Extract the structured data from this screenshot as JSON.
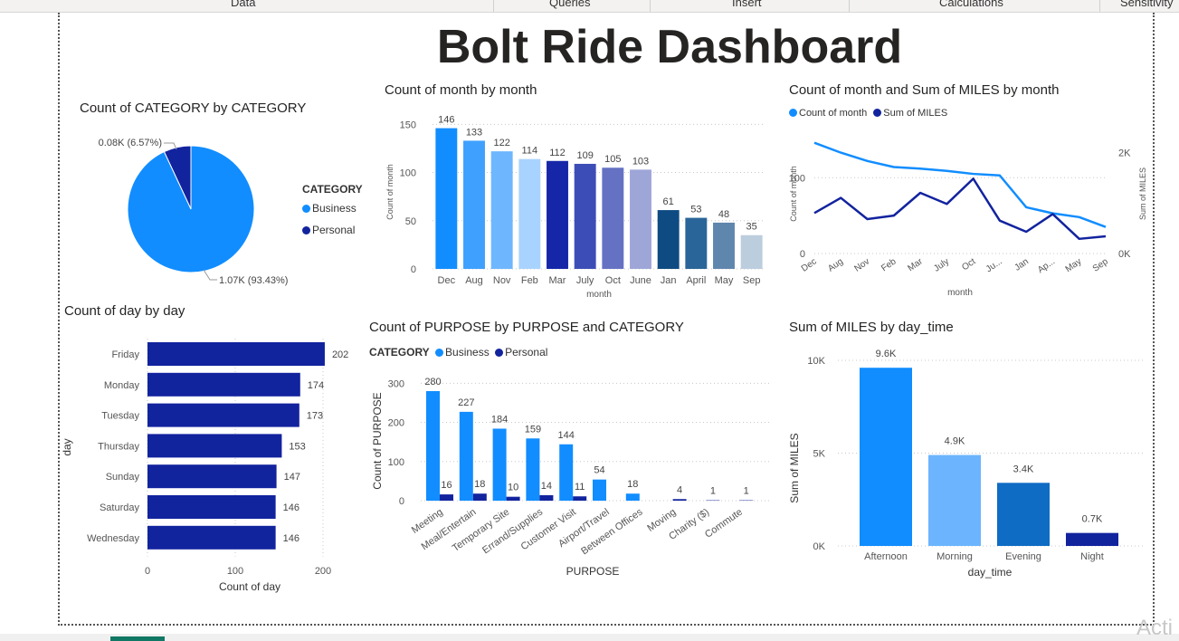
{
  "ribbon": {
    "tabs": [
      "Data",
      "Queries",
      "Insert",
      "Calculations",
      "Sensitivity"
    ]
  },
  "dashboard_title": "Bolt Ride Dashboard",
  "colors": {
    "business": "#118dff",
    "personal": "#12239e",
    "line_count": "#118dff",
    "line_miles": "#12239e"
  },
  "watermark": "Acti",
  "chart_data": [
    {
      "id": "category_pie",
      "type": "pie",
      "title": "Count of CATEGORY by CATEGORY",
      "legend_title": "CATEGORY",
      "categories": [
        "Business",
        "Personal"
      ],
      "values": [
        1070,
        80
      ],
      "data_labels": [
        "1.07K (93.43%)",
        "0.08K (6.57%)"
      ],
      "percents": [
        93.43,
        6.57
      ],
      "colors": [
        "#118dff",
        "#12239e"
      ],
      "legend_position": "right"
    },
    {
      "id": "month_bar",
      "type": "bar",
      "title": "Count of month by month",
      "xlabel": "month",
      "ylabel": "Count of month",
      "categories": [
        "Dec",
        "Aug",
        "Nov",
        "Feb",
        "Mar",
        "July",
        "Oct",
        "June",
        "Jan",
        "April",
        "May",
        "Sep"
      ],
      "values": [
        146,
        133,
        122,
        114,
        112,
        109,
        105,
        103,
        61,
        53,
        48,
        35
      ],
      "colors": [
        "#118dff",
        "#3fa0fe",
        "#6eb7fe",
        "#a8d3fe",
        "#1527a8",
        "#3d4db7",
        "#6572c3",
        "#9ea6d8",
        "#0e4b82",
        "#2a6599",
        "#5f86ad",
        "#bccdde"
      ],
      "yticks": [
        0,
        50,
        100,
        150
      ],
      "ylim": [
        0,
        155
      ]
    },
    {
      "id": "month_line",
      "type": "line",
      "title": "Count of month and Sum of MILES by month",
      "xlabel": "month",
      "ylabel": "Count of month",
      "y2label": "Sum of MILES",
      "categories": [
        "Dec",
        "Aug",
        "Nov",
        "Feb",
        "Mar",
        "July",
        "Oct",
        "Ju...",
        "Jan",
        "Ap...",
        "May",
        "Sep"
      ],
      "series": [
        {
          "name": "Count of month",
          "axis": "left",
          "values": [
            146,
            133,
            122,
            114,
            112,
            109,
            105,
            103,
            61,
            53,
            48,
            35
          ]
        },
        {
          "name": "Sum of MILES",
          "axis": "right",
          "values": [
            800,
            1100,
            680,
            750,
            1200,
            980,
            1480,
            650,
            430,
            780,
            290,
            340
          ]
        }
      ],
      "yticks": [
        0,
        100
      ],
      "y2ticks": [
        "0K",
        "2K"
      ],
      "ylim": [
        0,
        160
      ],
      "y2lim": [
        0,
        2400
      ],
      "legend_position": "top-left"
    },
    {
      "id": "day_bar",
      "type": "bar",
      "orientation": "horizontal",
      "title": "Count of day by day",
      "xlabel": "Count of day",
      "ylabel": "day",
      "categories": [
        "Friday",
        "Monday",
        "Tuesday",
        "Thursday",
        "Sunday",
        "Saturday",
        "Wednesday"
      ],
      "values": [
        202,
        174,
        173,
        153,
        147,
        146,
        146
      ],
      "color": "#12239e",
      "xticks": [
        0,
        100,
        200
      ],
      "xlim": [
        0,
        210
      ]
    },
    {
      "id": "purpose_bar",
      "type": "bar",
      "title": "Count of PURPOSE by PURPOSE and CATEGORY",
      "xlabel": "PURPOSE",
      "ylabel": "Count of PURPOSE",
      "legend_title": "CATEGORY",
      "categories": [
        "Meeting",
        "Meal/Entertain",
        "Temporary Site",
        "Errand/Supplies",
        "Customer Visit",
        "Airport/Travel",
        "Between Offices",
        "Moving",
        "Charity ($)",
        "Commute"
      ],
      "series": [
        {
          "name": "Business",
          "values": [
            280,
            227,
            184,
            159,
            144,
            54,
            18,
            null,
            null,
            null
          ]
        },
        {
          "name": "Personal",
          "values": [
            16,
            18,
            10,
            14,
            11,
            null,
            null,
            4,
            1,
            1
          ]
        }
      ],
      "yticks": [
        0,
        100,
        200,
        300
      ],
      "ylim": [
        0,
        310
      ],
      "legend_position": "top-left"
    },
    {
      "id": "daytime_bar",
      "type": "bar",
      "title": "Sum of MILES by day_time",
      "xlabel": "day_time",
      "ylabel": "Sum of MILES",
      "categories": [
        "Afternoon",
        "Morning",
        "Evening",
        "Night"
      ],
      "values": [
        9600,
        4900,
        3400,
        700
      ],
      "data_labels": [
        "9.6K",
        "4.9K",
        "3.4K",
        "0.7K"
      ],
      "colors": [
        "#118dff",
        "#6cb4fe",
        "#0f6cc4",
        "#12239e"
      ],
      "yticks": [
        "0K",
        "5K",
        "10K"
      ],
      "ylim": [
        0,
        10000
      ]
    }
  ]
}
